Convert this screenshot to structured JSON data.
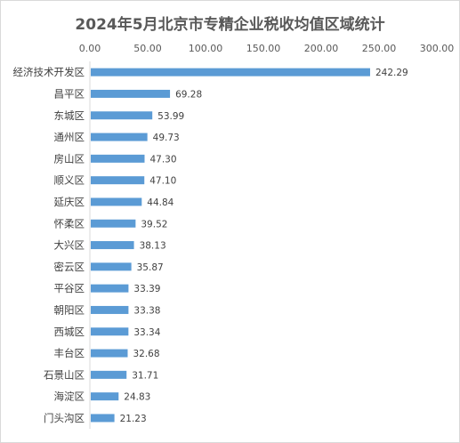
{
  "chart_data": {
    "type": "bar",
    "orientation": "horizontal",
    "title": "2024年5月北京市专精企业税收均值区域统计",
    "xlabel": "",
    "ylabel": "",
    "xlim": [
      0,
      300
    ],
    "x_ticks": [
      "0.00",
      "50.00",
      "100.00",
      "150.00",
      "200.00",
      "250.00",
      "300.00"
    ],
    "x_axis_position": "top",
    "gridlines": false,
    "legend": "none",
    "bar_color": "#5b9bd5",
    "categories": [
      "经济技术开发区",
      "昌平区",
      "东城区",
      "通州区",
      "房山区",
      "顺义区",
      "延庆区",
      "怀柔区",
      "大兴区",
      "密云区",
      "平谷区",
      "朝阳区",
      "西城区",
      "丰台区",
      "石景山区",
      "海淀区",
      "门头沟区"
    ],
    "values": [
      242.29,
      69.28,
      53.99,
      49.73,
      47.3,
      47.1,
      44.84,
      39.52,
      38.13,
      35.87,
      33.39,
      33.38,
      33.34,
      32.68,
      31.71,
      24.83,
      21.23
    ],
    "data_labels": [
      "242.29",
      "69.28",
      "53.99",
      "49.73",
      "47.30",
      "47.10",
      "44.84",
      "39.52",
      "38.13",
      "35.87",
      "33.39",
      "33.38",
      "33.34",
      "32.68",
      "31.71",
      "24.83",
      "21.23"
    ]
  }
}
